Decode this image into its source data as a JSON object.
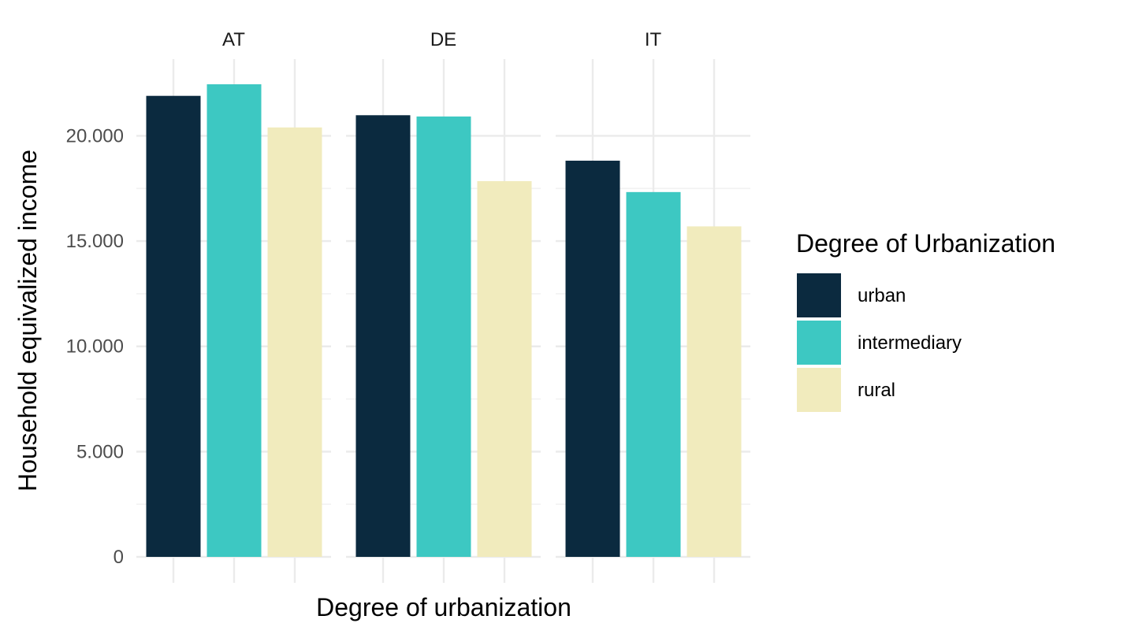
{
  "colors": {
    "urban": "#0b2a3f",
    "intermediary": "#3dc8c2",
    "rural": "#f1ebbd"
  },
  "chart_data": {
    "type": "bar",
    "facets": [
      "AT",
      "DE",
      "IT"
    ],
    "categories": [
      "urban",
      "intermediary",
      "rural"
    ],
    "series": [
      {
        "facet": "AT",
        "values": [
          21900,
          22450,
          20400
        ]
      },
      {
        "facet": "DE",
        "values": [
          20980,
          20920,
          17850
        ]
      },
      {
        "facet": "IT",
        "values": [
          18820,
          17330,
          15700
        ]
      }
    ],
    "xlabel": "Degree of urbanization",
    "ylabel": "Household equivalized income",
    "ylim": [
      0,
      22450
    ],
    "y_ticks": [
      0,
      5000,
      10000,
      15000,
      20000
    ],
    "y_tick_labels": [
      "0",
      "5.000",
      "10.000",
      "15.000",
      "20.000"
    ],
    "x_tick_labels_shown": false,
    "grid": true,
    "legend": {
      "title": "Degree of Urbanization",
      "position": "right",
      "entries": [
        "urban",
        "intermediary",
        "rural"
      ]
    }
  }
}
